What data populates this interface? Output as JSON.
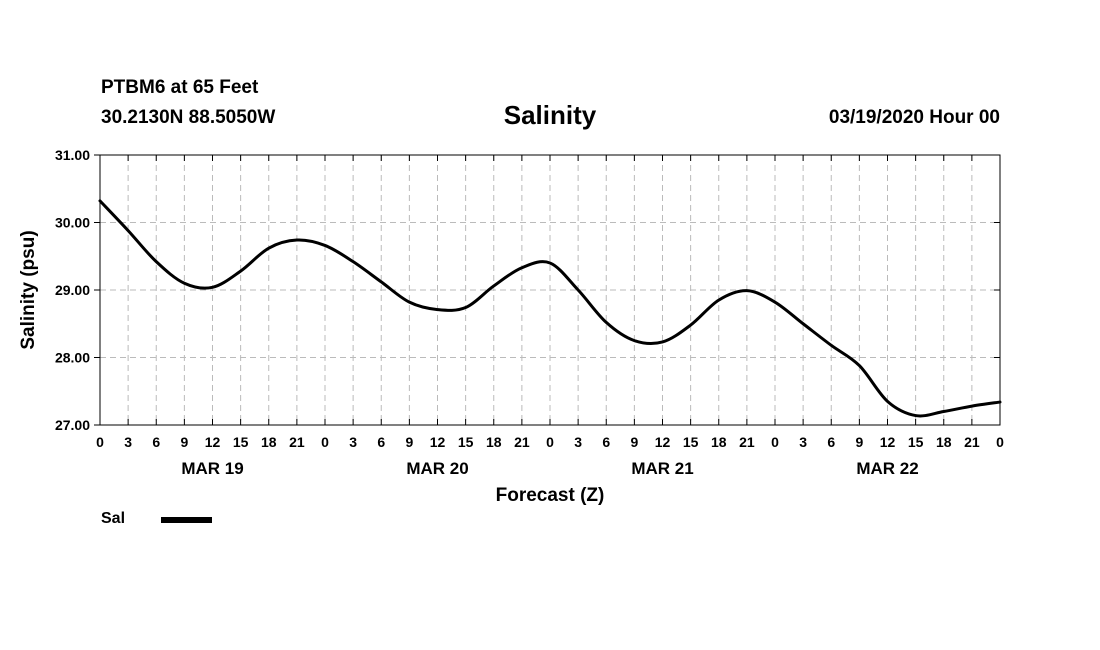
{
  "header": {
    "station": "PTBM6 at 65 Feet",
    "coords": "30.2130N 88.5050W",
    "date": "03/19/2020 Hour 00"
  },
  "legend": {
    "series_label": "Sal"
  },
  "chart_data": {
    "type": "line",
    "title": "Salinity",
    "xlabel": "Forecast (Z)",
    "ylabel": "Salinity (psu)",
    "ylim": [
      27.0,
      31.0
    ],
    "xlim": [
      0,
      96
    ],
    "y_ticks": [
      "27.00",
      "28.00",
      "29.00",
      "30.00",
      "31.00"
    ],
    "x_tick_labels": [
      "0",
      "3",
      "6",
      "9",
      "12",
      "15",
      "18",
      "21",
      "0",
      "3",
      "6",
      "9",
      "12",
      "15",
      "18",
      "21",
      "0",
      "3",
      "6",
      "9",
      "12",
      "15",
      "18",
      "21",
      "0",
      "3",
      "6",
      "9",
      "12",
      "15",
      "18",
      "21",
      "0"
    ],
    "day_labels": [
      {
        "label": "MAR 19",
        "hour": 12
      },
      {
        "label": "MAR 20",
        "hour": 36
      },
      {
        "label": "MAR 21",
        "hour": 60
      },
      {
        "label": "MAR 22",
        "hour": 84
      }
    ],
    "grid": true,
    "series": [
      {
        "name": "Sal",
        "x": [
          0,
          3,
          6,
          9,
          12,
          15,
          18,
          21,
          24,
          27,
          30,
          33,
          36,
          39,
          42,
          45,
          48,
          51,
          54,
          57,
          60,
          63,
          66,
          69,
          72,
          75,
          78,
          81,
          84,
          87,
          90,
          93,
          96
        ],
        "values": [
          30.32,
          29.88,
          29.42,
          29.1,
          29.04,
          29.28,
          29.62,
          29.74,
          29.66,
          29.42,
          29.12,
          28.82,
          28.71,
          28.74,
          29.06,
          29.33,
          29.4,
          29.0,
          28.52,
          28.25,
          28.23,
          28.48,
          28.85,
          28.99,
          28.82,
          28.5,
          28.18,
          27.88,
          27.35,
          27.14,
          27.2,
          27.28,
          27.34
        ]
      }
    ]
  }
}
